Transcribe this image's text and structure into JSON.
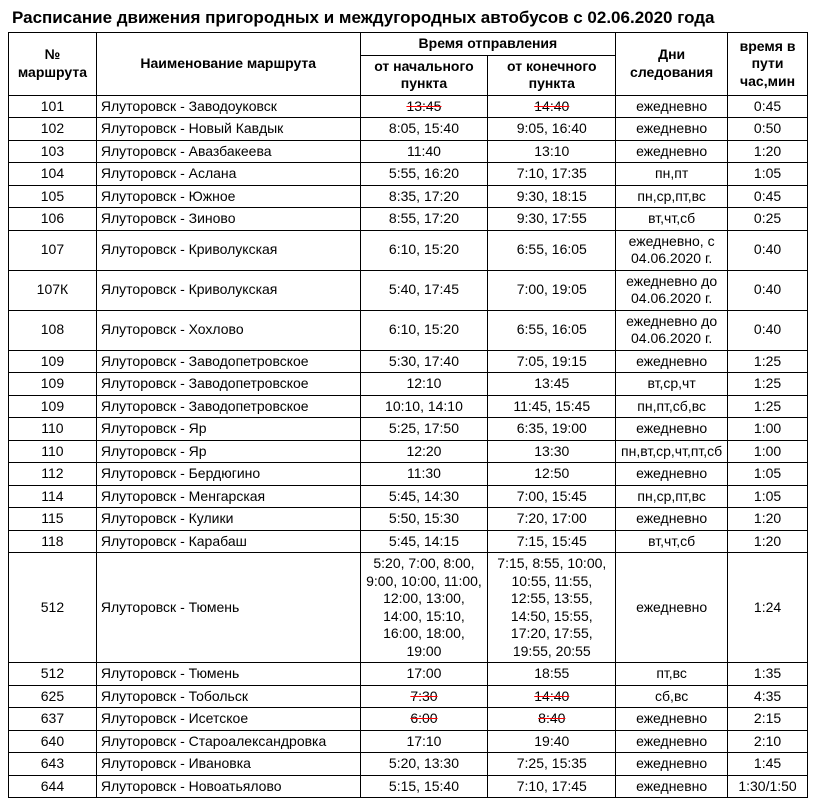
{
  "title": "Расписание движения пригородных и междугородных автобусов с 02.06.2020 года",
  "headers": {
    "route_num": "№ маршрута",
    "route_name": "Наименование маршрута",
    "departure_group": "Время отправления",
    "from_start": "от начального пункта",
    "from_end": "от конечного пункта",
    "days": "Дни следования",
    "duration": "время в пути час,мин"
  },
  "rows": [
    {
      "num": "101",
      "name": "Ялуторовск - Заводоуковск",
      "dep_start": "13:45",
      "dep_end": "14:40",
      "days": "ежедневно",
      "duration": "0:45",
      "strike": true
    },
    {
      "num": "102",
      "name": "Ялуторовск - Новый Кавдык",
      "dep_start": "8:05, 15:40",
      "dep_end": "9:05, 16:40",
      "days": "ежедневно",
      "duration": "0:50"
    },
    {
      "num": "103",
      "name": "Ялуторовск - Авазбакеева",
      "dep_start": "11:40",
      "dep_end": "13:10",
      "days": "ежедневно",
      "duration": "1:20"
    },
    {
      "num": "104",
      "name": "Ялуторовск - Аслана",
      "dep_start": "5:55, 16:20",
      "dep_end": "7:10, 17:35",
      "days": "пн,пт",
      "duration": "1:05"
    },
    {
      "num": "105",
      "name": "Ялуторовск - Южное",
      "dep_start": "8:35, 17:20",
      "dep_end": "9:30, 18:15",
      "days": "пн,ср,пт,вс",
      "duration": "0:45"
    },
    {
      "num": "106",
      "name": "Ялуторовск - Зиново",
      "dep_start": "8:55, 17:20",
      "dep_end": "9:30, 17:55",
      "days": "вт,чт,сб",
      "duration": "0:25"
    },
    {
      "num": "107",
      "name": "Ялуторовск - Криволукская",
      "dep_start": "6:10, 15:20",
      "dep_end": "6:55, 16:05",
      "days": "ежедневно, с 04.06.2020 г.",
      "duration": "0:40"
    },
    {
      "num": "107К",
      "name": "Ялуторовск - Криволукская",
      "dep_start": "5:40, 17:45",
      "dep_end": "7:00, 19:05",
      "days": "ежедневно до 04.06.2020 г.",
      "duration": "0:40"
    },
    {
      "num": "108",
      "name": "Ялуторовск - Хохлово",
      "dep_start": "6:10, 15:20",
      "dep_end": "6:55, 16:05",
      "days": "ежедневно до 04.06.2020 г.",
      "duration": "0:40"
    },
    {
      "num": "109",
      "name": "Ялуторовск - Заводопетровское",
      "dep_start": "5:30, 17:40",
      "dep_end": "7:05, 19:15",
      "days": "ежедневно",
      "duration": "1:25"
    },
    {
      "num": "109",
      "name": "Ялуторовск - Заводопетровское",
      "dep_start": "12:10",
      "dep_end": "13:45",
      "days": "вт,ср,чт",
      "duration": "1:25"
    },
    {
      "num": "109",
      "name": "Ялуторовск - Заводопетровское",
      "dep_start": "10:10, 14:10",
      "dep_end": "11:45, 15:45",
      "days": "пн,пт,сб,вс",
      "duration": "1:25"
    },
    {
      "num": "110",
      "name": "Ялуторовск - Яр",
      "dep_start": "5:25, 17:50",
      "dep_end": "6:35, 19:00",
      "days": "ежедневно",
      "duration": "1:00"
    },
    {
      "num": "110",
      "name": "Ялуторовск - Яр",
      "dep_start": "12:20",
      "dep_end": "13:30",
      "days": "пн,вт,ср,чт,пт,сб",
      "duration": "1:00"
    },
    {
      "num": "112",
      "name": "Ялуторовск - Бердюгино",
      "dep_start": "11:30",
      "dep_end": "12:50",
      "days": "ежедневно",
      "duration": "1:05"
    },
    {
      "num": "114",
      "name": "Ялуторовск - Менгарская",
      "dep_start": "5:45, 14:30",
      "dep_end": "7:00, 15:45",
      "days": "пн,ср,пт,вс",
      "duration": "1:05"
    },
    {
      "num": "115",
      "name": "Ялуторовск - Кулики",
      "dep_start": "5:50, 15:30",
      "dep_end": "7:20, 17:00",
      "days": "ежедневно",
      "duration": "1:20"
    },
    {
      "num": "118",
      "name": "Ялуторовск - Карабаш",
      "dep_start": "5:45, 14:15",
      "dep_end": "7:15, 15:45",
      "days": "вт,чт,сб",
      "duration": "1:20"
    },
    {
      "num": "512",
      "name": "Ялуторовск - Тюмень",
      "dep_start": "5:20, 7:00, 8:00, 9:00, 10:00, 11:00, 12:00, 13:00, 14:00, 15:10, 16:00, 18:00, 19:00",
      "dep_end": "7:15, 8:55, 10:00, 10:55, 11:55, 12:55, 13:55, 14:50, 15:55, 17:20, 17:55, 19:55, 20:55",
      "days": "ежедневно",
      "duration": "1:24"
    },
    {
      "num": "512",
      "name": "Ялуторовск - Тюмень",
      "dep_start": "17:00",
      "dep_end": "18:55",
      "days": "пт,вс",
      "duration": "1:35"
    },
    {
      "num": "625",
      "name": "Ялуторовск - Тобольск",
      "dep_start": "7:30",
      "dep_end": "14:40",
      "days": "сб,вс",
      "duration": "4:35",
      "strike": true
    },
    {
      "num": "637",
      "name": "Ялуторовск - Исетское",
      "dep_start": "6:00",
      "dep_end": "8:40",
      "days": "ежедневно",
      "duration": "2:15",
      "strike": true
    },
    {
      "num": "640",
      "name": "Ялуторовск - Староалександровка",
      "dep_start": "17:10",
      "dep_end": "19:40",
      "days": "ежедневно",
      "duration": "2:10"
    },
    {
      "num": "643",
      "name": "Ялуторовск - Ивановка",
      "dep_start": "5:20, 13:30",
      "dep_end": "7:25, 15:35",
      "days": "ежедневно",
      "duration": "1:45"
    },
    {
      "num": "644",
      "name": "Ялуторовск - Новоатьялово",
      "dep_start": "5:15, 15:40",
      "dep_end": "7:10, 17:45",
      "days": "ежедневно",
      "duration": "1:30/1:50"
    }
  ]
}
